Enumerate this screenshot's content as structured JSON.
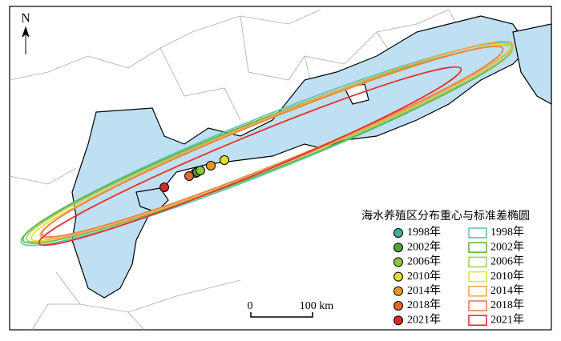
{
  "north": "N",
  "scale": {
    "start": "0",
    "end": "100 km"
  },
  "legend": {
    "title": "海水养殖区分布重心与标准差椭圆",
    "points": [
      {
        "label": "1998年",
        "color": "#3fae9a"
      },
      {
        "label": "2002年",
        "color": "#4fa33a"
      },
      {
        "label": "2006年",
        "color": "#8cc63f"
      },
      {
        "label": "2010年",
        "color": "#e2dc24"
      },
      {
        "label": "2014年",
        "color": "#e39a24"
      },
      {
        "label": "2018年",
        "color": "#df6a2e"
      },
      {
        "label": "2021年",
        "color": "#d42a26"
      }
    ],
    "ellipses": [
      {
        "label": "1998年",
        "color": "#5ec6b6"
      },
      {
        "label": "2002年",
        "color": "#66b43e"
      },
      {
        "label": "2006年",
        "color": "#a6d05c"
      },
      {
        "label": "2010年",
        "color": "#e6e03c"
      },
      {
        "label": "2014年",
        "color": "#eeaa4c"
      },
      {
        "label": "2018年",
        "color": "#e8824e"
      },
      {
        "label": "2021年",
        "color": "#e6302e"
      }
    ]
  }
}
